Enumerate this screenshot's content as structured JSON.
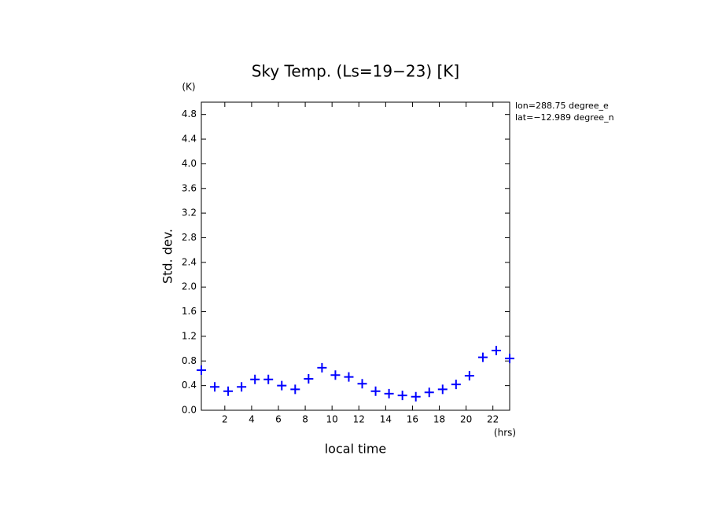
{
  "chart_data": {
    "type": "scatter",
    "title": "Sky Temp. (Ls=19−23) [K]",
    "x_label": "local time",
    "x_unit": "(hrs)",
    "y_label": "Std. dev.",
    "y_unit": "(K)",
    "annotations": [
      "lon=288.75 degree_e",
      "lat=−12.989 degree_n"
    ],
    "color": "#0000ff",
    "x": [
      0.25,
      1.25,
      2.25,
      3.25,
      4.25,
      5.25,
      6.25,
      7.25,
      8.25,
      9.25,
      10.25,
      11.25,
      12.25,
      13.25,
      14.25,
      15.25,
      16.25,
      17.25,
      18.25,
      19.25,
      20.25,
      21.25,
      22.25,
      23.25
    ],
    "values": [
      0.65,
      0.38,
      0.31,
      0.38,
      0.5,
      0.5,
      0.4,
      0.34,
      0.51,
      0.69,
      0.57,
      0.54,
      0.43,
      0.31,
      0.27,
      0.24,
      0.22,
      0.29,
      0.34,
      0.42,
      0.56,
      0.86,
      0.97,
      0.84
    ],
    "xlim": [
      0.25,
      23.25
    ],
    "xticks": [
      2,
      4,
      6,
      8,
      10,
      12,
      14,
      16,
      18,
      20,
      22
    ],
    "ylim": [
      0,
      5
    ],
    "yticks": [
      {
        "value": 0,
        "label": "0.0"
      },
      0.4,
      0.8,
      1.2,
      1.6,
      {
        "value": 2,
        "label": "2.0"
      },
      2.4,
      2.8,
      3.2,
      3.6,
      {
        "value": 4,
        "label": "4.0"
      },
      4.4,
      4.8
    ],
    "grid": false
  }
}
